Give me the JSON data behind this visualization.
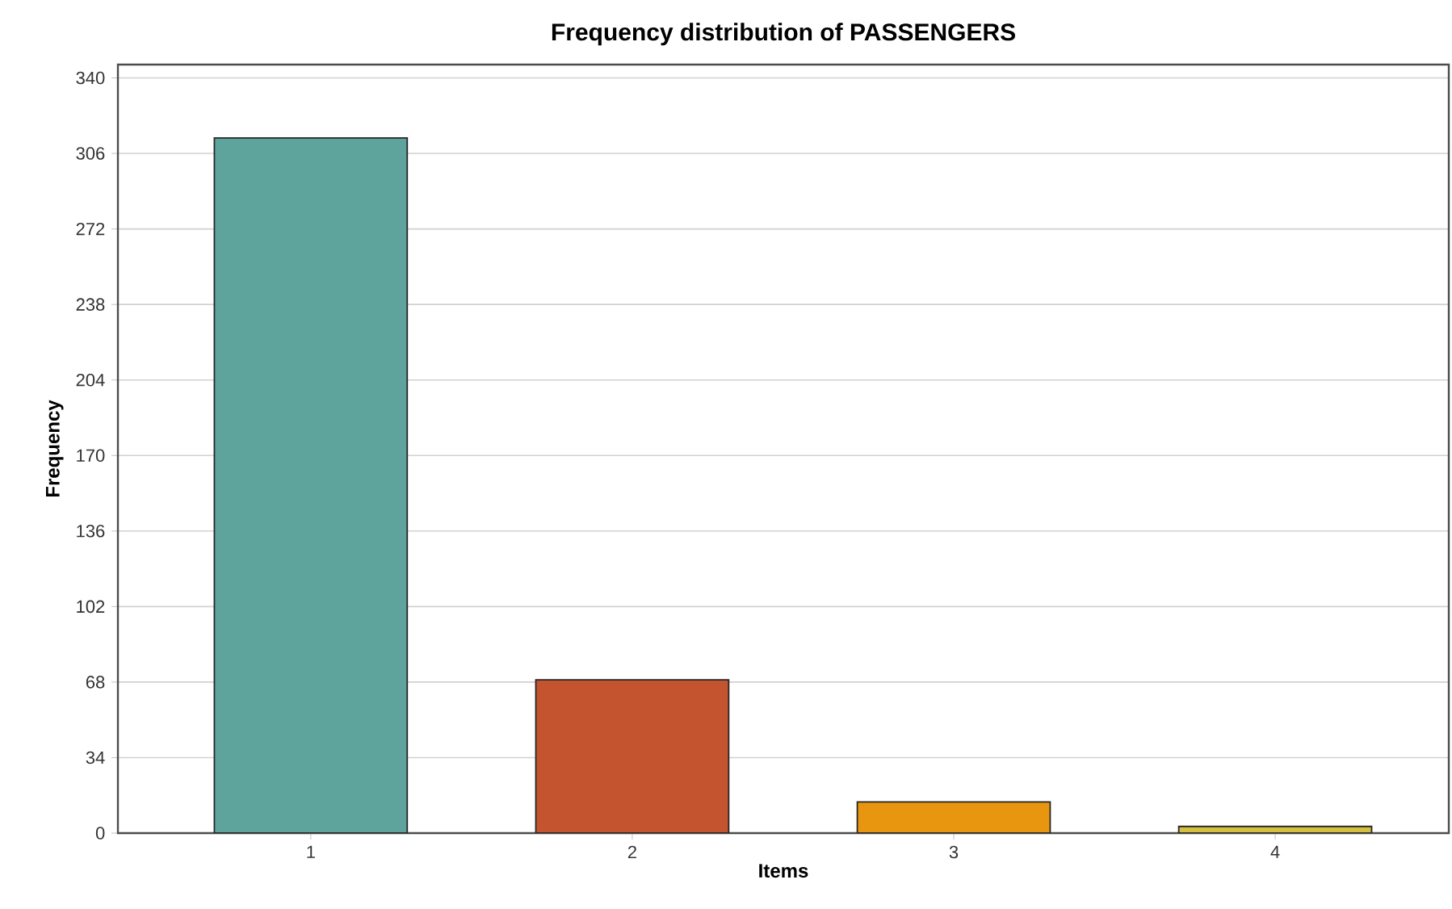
{
  "chart_data": {
    "type": "bar",
    "title": "Frequency distribution of PASSENGERS",
    "xlabel": "Items",
    "ylabel": "Frequency",
    "categories": [
      "1",
      "2",
      "3",
      "4"
    ],
    "values": [
      313,
      69,
      14,
      3
    ],
    "colors": [
      "#5fa39d",
      "#c4532f",
      "#e8960f",
      "#d4c040"
    ],
    "ylim": [
      0,
      346
    ],
    "yticks": [
      0,
      34,
      68,
      102,
      136,
      170,
      204,
      238,
      272,
      306,
      340
    ],
    "grid": "y"
  }
}
